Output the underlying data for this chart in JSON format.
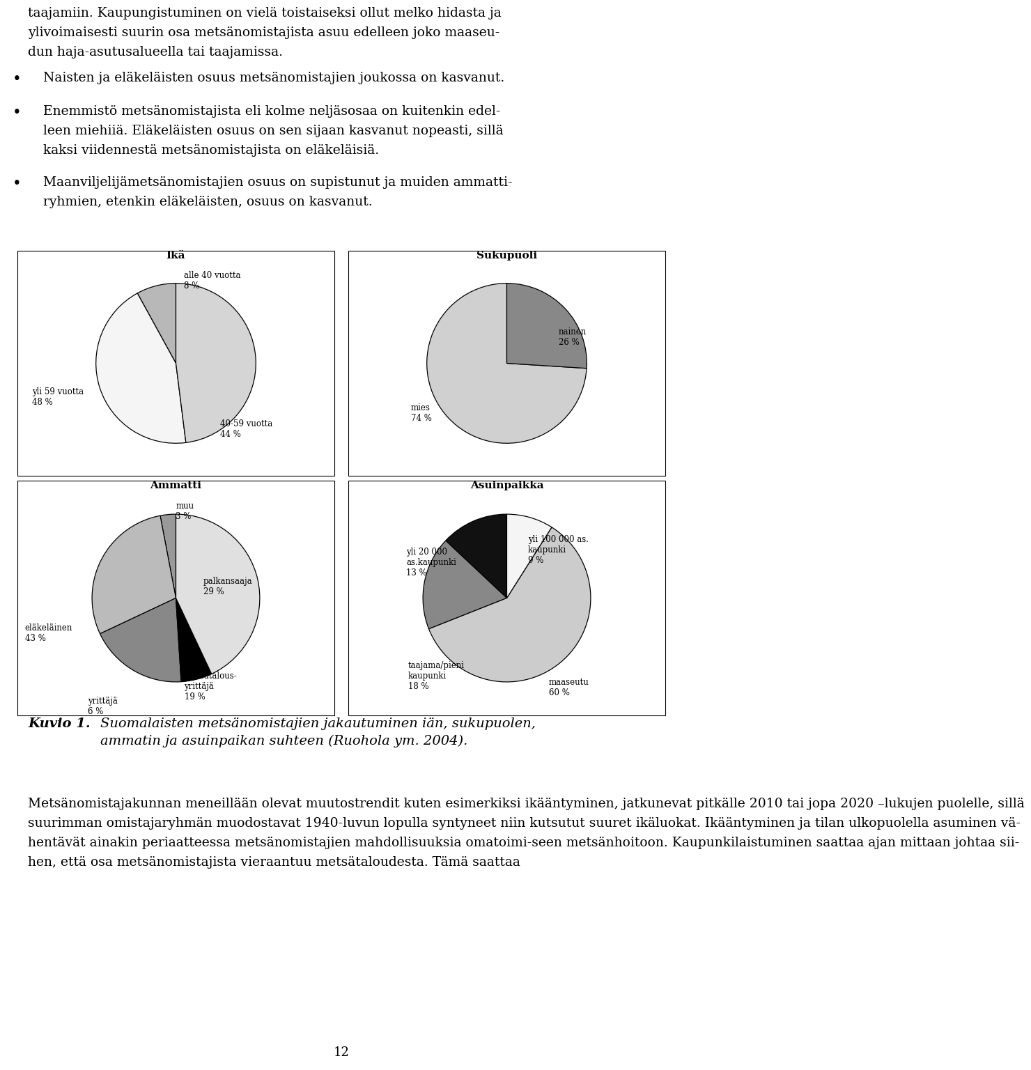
{
  "title_line1": "taajamiin. Kaupungistuminen on vielä toistaiseksi ollut melko hidasta ja",
  "title_line2": "ylivoimaisesti suurin osa metsänomistajista asuu edelleen joko maaseu-",
  "title_line3": "dun haja-asutusalueella tai taajamissa.",
  "bullet1": "Naisten ja eläkeläisten osuus metsänomistajien joukossa on kasvanut.",
  "bullet2_line1": "Enemmistö metsänomistajista eli kolme neljäsosaa on kuitenkin edel-",
  "bullet2_line2": "leen miehiiä. Eläkeläisten osuus on sen sijaan kasvanut nopeasti, sillä",
  "bullet2_line3": "kaksi viidennestä metsänomistajista on eläkeläisiä.",
  "bullet3_line1": "Maanviljelijämetsänomistajien osuus on supistunut ja muiden ammatti-",
  "bullet3_line2": "ryhmien, etenkin eläkeläisten, osuus on kasvanut.",
  "chart1_title": "Ikä",
  "chart1_slices": [
    8,
    44,
    48
  ],
  "chart1_colors": [
    "#b8b8b8",
    "#f5f5f5",
    "#d5d5d5"
  ],
  "chart1_startangle": 90,
  "chart2_title": "Sukupuoli",
  "chart2_slices": [
    74,
    26
  ],
  "chart2_colors": [
    "#d0d0d0",
    "#888888"
  ],
  "chart2_startangle": 90,
  "chart3_title": "Ammatti",
  "chart3_slices": [
    3,
    29,
    19,
    6,
    43
  ],
  "chart3_colors": [
    "#999999",
    "#bbbbbb",
    "#888888",
    "#000000",
    "#e0e0e0"
  ],
  "chart3_startangle": 90,
  "chart4_title": "Asuinpaikka",
  "chart4_slices": [
    13,
    18,
    60,
    9
  ],
  "chart4_colors": [
    "#111111",
    "#888888",
    "#cccccc",
    "#f5f5f5"
  ],
  "chart4_startangle": 90,
  "caption_bold": "Kuvio 1.",
  "caption_italic": "Suomalaisten metsänomistajien jakautuminen iän, sukupuolen,\nammatin ja asuinpaikan suhteen (Ruohola ym. 2004).",
  "footer_line1": "Metsänomistajakunnan meneillään olevat muutostrendit kuten esimerkiksi ikääntyminen, jatkunevat pitkälle 2010 tai jopa 2020 –lukujen puolelle, sillä",
  "footer_line2": "suurimman omistajaryhmän muodostavat 1940-luvun lopulla syntyneet niin kutsutut suuret ikäluokat. Ikääntyminen ja tilan ulkopuolella asuminen vä-",
  "footer_line3": "hentävät ainakin periaatteessa metsänomistajien mahdollisuuksia omatoimi-seen metsänhoitoon. Kaupunkilaistuminen saattaa ajan mittaan johtaa sii-",
  "footer_line4": "hen, että osa metsänomistajista vieraantuu metsätaloudesta. Tämä saattaa",
  "page_number": "12",
  "bg_color": "#ffffff"
}
